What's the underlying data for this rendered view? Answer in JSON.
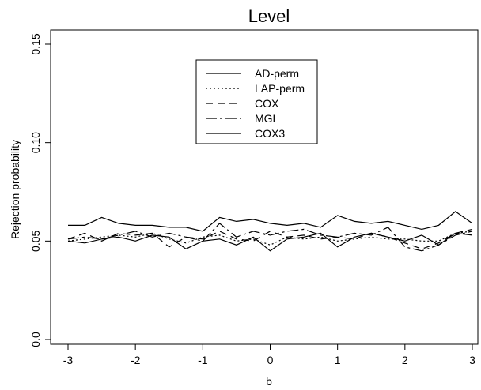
{
  "chart_data": {
    "type": "line",
    "title": "Level",
    "xlabel": "b",
    "ylabel": "Rejection probability",
    "xlim": [
      -3,
      3
    ],
    "ylim": [
      0.0,
      0.15
    ],
    "x_ticks": [
      "-3",
      "-2",
      "-1",
      "0",
      "1",
      "2",
      "3"
    ],
    "y_ticks": [
      "0.0",
      "0.05",
      "0.10",
      "0.15"
    ],
    "legend_placement": "top-center",
    "grid": false,
    "x": [
      -3.0,
      -2.75,
      -2.5,
      -2.25,
      -2.0,
      -1.75,
      -1.5,
      -1.25,
      -1.0,
      -0.75,
      -0.5,
      -0.25,
      0.0,
      0.25,
      0.5,
      0.75,
      1.0,
      1.25,
      1.5,
      1.75,
      2.0,
      2.25,
      2.5,
      2.75,
      3.0
    ],
    "series": [
      {
        "name": "AD-perm",
        "dash": "none",
        "values": [
          0.05,
          0.049,
          0.051,
          0.052,
          0.05,
          0.053,
          0.052,
          0.046,
          0.05,
          0.051,
          0.048,
          0.052,
          0.045,
          0.051,
          0.052,
          0.054,
          0.047,
          0.052,
          0.054,
          0.052,
          0.05,
          0.053,
          0.048,
          0.054,
          0.053
        ]
      },
      {
        "name": "LAP-perm",
        "dash": "2,3",
        "values": [
          0.05,
          0.051,
          0.052,
          0.053,
          0.052,
          0.054,
          0.051,
          0.049,
          0.052,
          0.053,
          0.05,
          0.051,
          0.048,
          0.052,
          0.051,
          0.052,
          0.05,
          0.051,
          0.052,
          0.051,
          0.051,
          0.05,
          0.05,
          0.054,
          0.055
        ]
      },
      {
        "name": "COX",
        "dash": "9,6",
        "values": [
          0.051,
          0.054,
          0.05,
          0.054,
          0.053,
          0.054,
          0.047,
          0.052,
          0.051,
          0.055,
          0.051,
          0.05,
          0.055,
          0.052,
          0.053,
          0.051,
          0.052,
          0.051,
          0.054,
          0.052,
          0.049,
          0.046,
          0.049,
          0.054,
          0.056
        ]
      },
      {
        "name": "MGL",
        "dash": "14,4,3,4",
        "values": [
          0.051,
          0.052,
          0.051,
          0.053,
          0.055,
          0.052,
          0.054,
          0.052,
          0.05,
          0.059,
          0.052,
          0.055,
          0.053,
          0.055,
          0.056,
          0.053,
          0.052,
          0.054,
          0.053,
          0.057,
          0.047,
          0.045,
          0.048,
          0.053,
          0.055
        ]
      },
      {
        "name": "COX3",
        "dash": "none",
        "values": [
          0.058,
          0.058,
          0.062,
          0.059,
          0.058,
          0.058,
          0.057,
          0.057,
          0.055,
          0.062,
          0.06,
          0.061,
          0.059,
          0.058,
          0.059,
          0.057,
          0.063,
          0.06,
          0.059,
          0.06,
          0.058,
          0.056,
          0.058,
          0.065,
          0.059
        ]
      }
    ]
  }
}
